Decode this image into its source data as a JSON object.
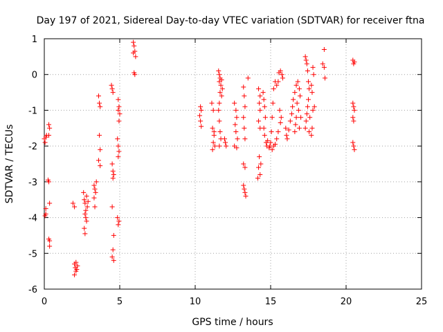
{
  "chart_data": {
    "type": "scatter",
    "title": "Day 197 of 2021, Sidereal Day-to-day VTEC variation (SDTVAR) for receiver ftna",
    "xlabel": "GPS time / hours",
    "ylabel": "SDTVAR / TECUs",
    "xlim": [
      0,
      25
    ],
    "ylim": [
      -6,
      1
    ],
    "xticks": [
      "0",
      "5",
      "10",
      "15",
      "20",
      "25"
    ],
    "yticks": [
      "1",
      "0",
      "-1",
      "-2",
      "-3",
      "-4",
      "-5",
      "-6"
    ],
    "grid": true,
    "marker": "plus",
    "marker_color": "#ff0000",
    "series": [
      {
        "name": "SDTVAR",
        "points": [
          [
            0.0,
            -1.8
          ],
          [
            0.1,
            -1.75
          ],
          [
            0.05,
            -1.9
          ],
          [
            0.15,
            -1.7
          ],
          [
            0.1,
            -3.75
          ],
          [
            0.05,
            -3.95
          ],
          [
            0.1,
            -3.9
          ],
          [
            0.3,
            -1.4
          ],
          [
            0.35,
            -1.5
          ],
          [
            0.3,
            -1.7
          ],
          [
            0.25,
            -2.95
          ],
          [
            0.3,
            -3.0
          ],
          [
            0.35,
            -3.6
          ],
          [
            0.3,
            -4.6
          ],
          [
            0.35,
            -4.65
          ],
          [
            0.35,
            -4.8
          ],
          [
            1.9,
            -3.6
          ],
          [
            2.0,
            -3.7
          ],
          [
            2.0,
            -5.3
          ],
          [
            2.05,
            -5.4
          ],
          [
            2.1,
            -5.5
          ],
          [
            2.0,
            -5.6
          ],
          [
            2.15,
            -5.45
          ],
          [
            2.1,
            -5.25
          ],
          [
            2.2,
            -5.35
          ],
          [
            2.6,
            -3.3
          ],
          [
            2.65,
            -3.5
          ],
          [
            2.7,
            -3.6
          ],
          [
            2.75,
            -3.8
          ],
          [
            2.7,
            -3.9
          ],
          [
            2.75,
            -4.0
          ],
          [
            2.8,
            -4.1
          ],
          [
            2.65,
            -4.3
          ],
          [
            2.7,
            -4.45
          ],
          [
            2.8,
            -3.4
          ],
          [
            2.85,
            -3.7
          ],
          [
            2.9,
            -3.55
          ],
          [
            3.3,
            -3.1
          ],
          [
            3.35,
            -3.2
          ],
          [
            3.4,
            -3.3
          ],
          [
            3.3,
            -3.45
          ],
          [
            3.45,
            -3.0
          ],
          [
            3.35,
            -3.7
          ],
          [
            3.6,
            -0.6
          ],
          [
            3.65,
            -0.8
          ],
          [
            3.7,
            -0.9
          ],
          [
            3.65,
            -1.7
          ],
          [
            3.7,
            -2.1
          ],
          [
            3.6,
            -2.4
          ],
          [
            3.7,
            -2.55
          ],
          [
            4.45,
            -0.3
          ],
          [
            4.5,
            -0.4
          ],
          [
            4.55,
            -0.5
          ],
          [
            4.5,
            -2.5
          ],
          [
            4.55,
            -2.7
          ],
          [
            4.6,
            -2.8
          ],
          [
            4.55,
            -2.9
          ],
          [
            4.5,
            -3.7
          ],
          [
            4.6,
            -4.5
          ],
          [
            4.55,
            -4.9
          ],
          [
            4.5,
            -5.1
          ],
          [
            4.6,
            -5.2
          ],
          [
            4.9,
            -0.7
          ],
          [
            4.95,
            -0.9
          ],
          [
            4.9,
            -1.0
          ],
          [
            5.0,
            -1.1
          ],
          [
            4.95,
            -1.3
          ],
          [
            4.85,
            -1.8
          ],
          [
            4.9,
            -2.0
          ],
          [
            4.95,
            -2.15
          ],
          [
            4.9,
            -2.3
          ],
          [
            4.85,
            -4.0
          ],
          [
            4.95,
            -4.1
          ],
          [
            4.9,
            -4.2
          ],
          [
            5.9,
            0.9
          ],
          [
            5.95,
            0.8
          ],
          [
            6.0,
            0.65
          ],
          [
            5.9,
            0.6
          ],
          [
            6.05,
            0.5
          ],
          [
            5.95,
            0.05
          ],
          [
            6.0,
            0.0
          ],
          [
            10.35,
            -0.9
          ],
          [
            10.4,
            -1.0
          ],
          [
            10.3,
            -1.15
          ],
          [
            10.35,
            -1.3
          ],
          [
            10.4,
            -1.45
          ],
          [
            11.1,
            -0.8
          ],
          [
            11.2,
            -1.0
          ],
          [
            11.15,
            -1.5
          ],
          [
            11.25,
            -1.6
          ],
          [
            11.2,
            -1.9
          ],
          [
            11.3,
            -2.0
          ],
          [
            11.15,
            -2.1
          ],
          [
            11.25,
            -1.7
          ],
          [
            11.55,
            0.1
          ],
          [
            11.6,
            0.0
          ],
          [
            11.65,
            -0.1
          ],
          [
            11.6,
            -0.2
          ],
          [
            11.7,
            -0.3
          ],
          [
            11.65,
            -0.5
          ],
          [
            11.6,
            -0.8
          ],
          [
            11.55,
            -1.0
          ],
          [
            11.6,
            -1.3
          ],
          [
            11.65,
            -1.6
          ],
          [
            11.7,
            -1.8
          ],
          [
            11.6,
            -2.0
          ],
          [
            11.75,
            -0.15
          ],
          [
            11.8,
            -0.4
          ],
          [
            11.75,
            -0.6
          ],
          [
            11.95,
            -1.8
          ],
          [
            12.0,
            -1.9
          ],
          [
            12.05,
            -2.0
          ],
          [
            12.6,
            -0.8
          ],
          [
            12.7,
            -1.0
          ],
          [
            12.75,
            -1.2
          ],
          [
            12.65,
            -1.4
          ],
          [
            12.7,
            -1.6
          ],
          [
            12.8,
            -1.8
          ],
          [
            12.75,
            -2.05
          ],
          [
            12.6,
            -2.0
          ],
          [
            13.2,
            -0.35
          ],
          [
            13.25,
            -0.6
          ],
          [
            13.3,
            -0.9
          ],
          [
            13.2,
            -1.2
          ],
          [
            13.25,
            -1.5
          ],
          [
            13.3,
            -1.8
          ],
          [
            13.2,
            -2.5
          ],
          [
            13.3,
            -2.6
          ],
          [
            13.25,
            -3.2
          ],
          [
            13.3,
            -3.3
          ],
          [
            13.35,
            -3.4
          ],
          [
            13.2,
            -3.1
          ],
          [
            13.5,
            -0.1
          ],
          [
            14.2,
            -0.4
          ],
          [
            14.3,
            -0.6
          ],
          [
            14.25,
            -0.8
          ],
          [
            14.3,
            -1.0
          ],
          [
            14.2,
            -1.3
          ],
          [
            14.3,
            -1.5
          ],
          [
            14.25,
            -2.3
          ],
          [
            14.2,
            -2.6
          ],
          [
            14.3,
            -2.8
          ],
          [
            14.15,
            -2.9
          ],
          [
            14.35,
            -2.5
          ],
          [
            14.5,
            -0.5
          ],
          [
            14.55,
            -0.7
          ],
          [
            14.6,
            -0.9
          ],
          [
            14.65,
            -1.2
          ],
          [
            14.55,
            -1.5
          ],
          [
            14.6,
            -1.7
          ],
          [
            14.7,
            -1.9
          ],
          [
            14.75,
            -2.0
          ],
          [
            14.8,
            -1.85
          ],
          [
            14.9,
            -2.05
          ],
          [
            15.0,
            -1.9
          ],
          [
            15.05,
            -1.6
          ],
          [
            15.1,
            -1.2
          ],
          [
            15.15,
            -0.8
          ],
          [
            15.2,
            -0.4
          ],
          [
            15.3,
            -0.2
          ],
          [
            15.4,
            -0.3
          ],
          [
            15.5,
            -0.2
          ],
          [
            15.55,
            0.05
          ],
          [
            15.65,
            0.1
          ],
          [
            15.75,
            0.0
          ],
          [
            15.8,
            -0.1
          ],
          [
            15.6,
            -1.0
          ],
          [
            15.7,
            -1.2
          ],
          [
            15.65,
            -1.35
          ],
          [
            15.5,
            -1.6
          ],
          [
            15.4,
            -1.8
          ],
          [
            15.3,
            -1.95
          ],
          [
            15.2,
            -2.0
          ],
          [
            15.1,
            -2.1
          ],
          [
            14.95,
            -2.0
          ],
          [
            16.0,
            -1.5
          ],
          [
            16.05,
            -1.7
          ],
          [
            16.1,
            -1.8
          ],
          [
            16.2,
            -1.55
          ],
          [
            16.3,
            -1.3
          ],
          [
            16.4,
            -1.1
          ],
          [
            16.45,
            -0.9
          ],
          [
            16.5,
            -0.7
          ],
          [
            16.6,
            -0.5
          ],
          [
            16.7,
            -0.3
          ],
          [
            16.8,
            -0.2
          ],
          [
            16.9,
            -0.4
          ],
          [
            16.75,
            -0.8
          ],
          [
            16.85,
            -1.0
          ],
          [
            16.7,
            -1.2
          ],
          [
            16.65,
            -1.4
          ],
          [
            16.6,
            -1.6
          ],
          [
            16.9,
            -1.5
          ],
          [
            17.0,
            -1.2
          ],
          [
            16.95,
            -0.6
          ],
          [
            17.3,
            0.5
          ],
          [
            17.35,
            0.4
          ],
          [
            17.4,
            0.3
          ],
          [
            17.45,
            0.1
          ],
          [
            17.5,
            -0.2
          ],
          [
            17.55,
            -0.4
          ],
          [
            17.5,
            -0.7
          ],
          [
            17.45,
            -0.9
          ],
          [
            17.4,
            -1.1
          ],
          [
            17.35,
            -1.3
          ],
          [
            17.3,
            -1.5
          ],
          [
            17.55,
            -1.6
          ],
          [
            17.6,
            -1.2
          ],
          [
            17.7,
            -0.3
          ],
          [
            17.75,
            -0.5
          ],
          [
            17.8,
            0.2
          ],
          [
            17.85,
            0.0
          ],
          [
            17.9,
            -0.9
          ],
          [
            17.8,
            -1.0
          ],
          [
            17.75,
            -1.5
          ],
          [
            17.7,
            -1.7
          ],
          [
            18.55,
            0.7
          ],
          [
            18.45,
            0.3
          ],
          [
            18.55,
            0.2
          ],
          [
            18.6,
            -0.1
          ],
          [
            20.45,
            0.4
          ],
          [
            20.5,
            0.3
          ],
          [
            20.55,
            0.35
          ],
          [
            20.45,
            -0.8
          ],
          [
            20.5,
            -0.9
          ],
          [
            20.55,
            -1.0
          ],
          [
            20.45,
            -1.2
          ],
          [
            20.5,
            -1.3
          ],
          [
            20.45,
            -1.9
          ],
          [
            20.5,
            -2.0
          ],
          [
            20.55,
            -2.1
          ]
        ]
      }
    ]
  }
}
